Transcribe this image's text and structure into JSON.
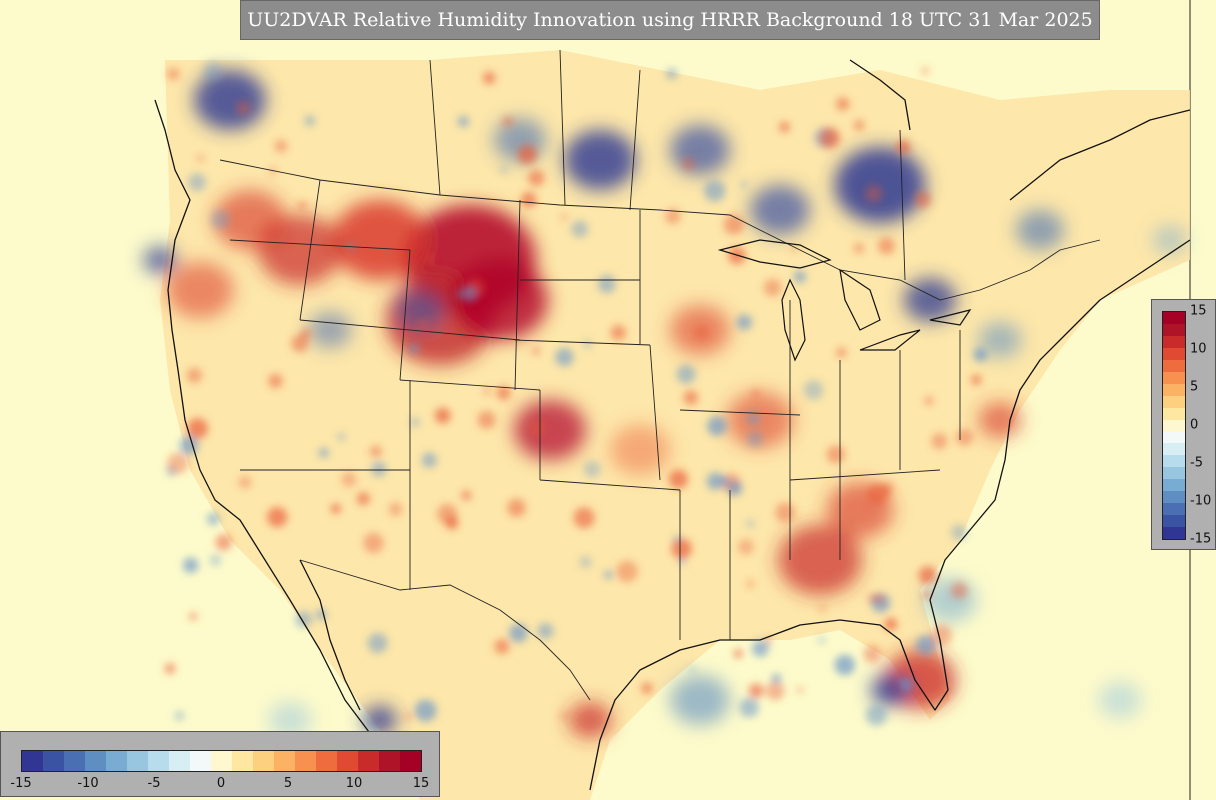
{
  "title": "UU2DVAR Relative Humidity Innovation using HRRR Background 18 UTC 31 Mar 2025",
  "colorbar": {
    "ticks": [
      "-15",
      "-10",
      "-5",
      "0",
      "5",
      "10",
      "15"
    ],
    "colors": [
      "#313695",
      "#3b53a3",
      "#4a6fb2",
      "#5e8ec2",
      "#79acd2",
      "#98c6e1",
      "#b7dcec",
      "#d7eef5",
      "#f3f8f8",
      "#fff7cf",
      "#fee7a1",
      "#fdd07f",
      "#fcb264",
      "#f8904f",
      "#ef6c3f",
      "#e04a32",
      "#c92a2a",
      "#ae1327",
      "#a50026"
    ]
  },
  "map": {
    "background": "#fdfbcb",
    "land_base": "#fde3a4",
    "wet_color": "#b00026",
    "dry_color": "#2d3a92"
  }
}
